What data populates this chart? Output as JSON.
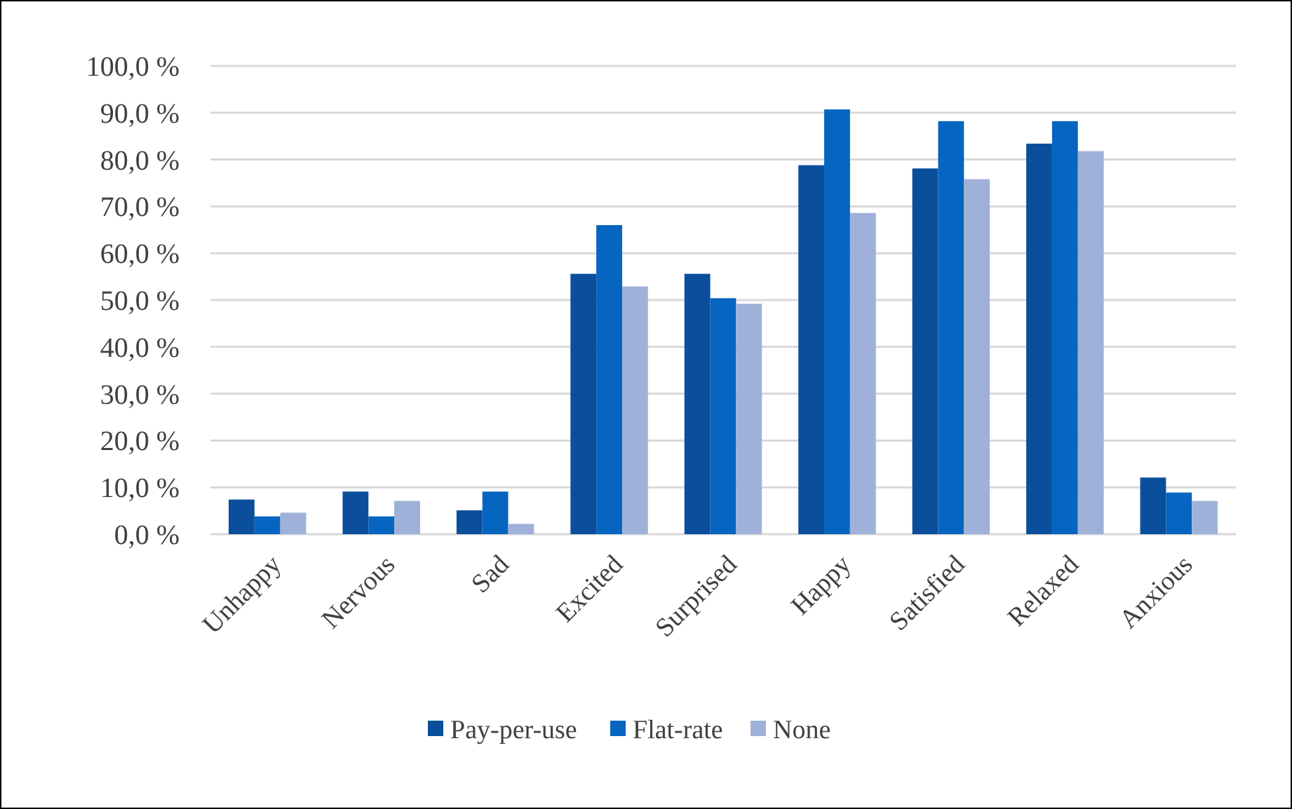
{
  "chart_data": {
    "type": "bar",
    "categories": [
      "Unhappy",
      "Nervous",
      "Sad",
      "Excited",
      "Surprised",
      "Happy",
      "Satisfied",
      "Relaxed",
      "Anxious"
    ],
    "series": [
      {
        "name": "Pay-per-use",
        "color": "#0b4f9c",
        "values": [
          7.4,
          9.1,
          5.1,
          55.6,
          55.6,
          78.8,
          78.1,
          83.4,
          12.1
        ]
      },
      {
        "name": "Flat-rate",
        "color": "#0565c0",
        "values": [
          3.8,
          3.8,
          9.1,
          66.0,
          50.4,
          90.7,
          88.2,
          88.2,
          8.9
        ]
      },
      {
        "name": "None",
        "color": "#9fb1d8",
        "values": [
          4.6,
          7.1,
          2.2,
          52.9,
          49.2,
          68.6,
          75.8,
          81.8,
          7.1
        ]
      }
    ],
    "ylim": [
      0,
      100
    ],
    "yticks": [
      {
        "value": 0,
        "label": "0,0 %"
      },
      {
        "value": 10,
        "label": "10,0 %"
      },
      {
        "value": 20,
        "label": "20,0 %"
      },
      {
        "value": 30,
        "label": "30,0 %"
      },
      {
        "value": 40,
        "label": "40,0 %"
      },
      {
        "value": 50,
        "label": "50,0 %"
      },
      {
        "value": 60,
        "label": "60,0 %"
      },
      {
        "value": 70,
        "label": "70,0 %"
      },
      {
        "value": 80,
        "label": "80,0 %"
      },
      {
        "value": 90,
        "label": "90,0 %"
      },
      {
        "value": 100,
        "label": "100,0 %"
      }
    ],
    "grid": "y",
    "legend": "bottom"
  }
}
